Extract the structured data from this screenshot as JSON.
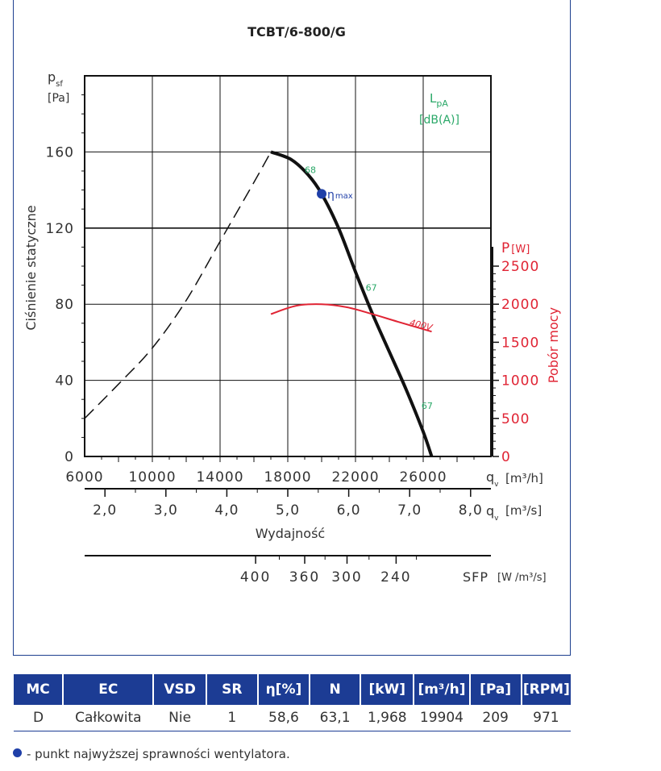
{
  "chart_data": {
    "type": "line",
    "title": "TCBT/6-800/G",
    "y_label": "Ciśnienie statyczne",
    "y_symbol": "p",
    "y_symbol_sub": "sf",
    "y_unit": "[Pa]",
    "y_ticks": [
      "160",
      "120",
      "80",
      "40",
      "0"
    ],
    "ylim": [
      0,
      200
    ],
    "x_label": "Wydajność",
    "x_ticks_m3h": [
      "6000",
      "10000",
      "14000",
      "18000",
      "22000",
      "26000"
    ],
    "x_unit_m3h": "[m³/h]",
    "x_symbol": "q",
    "x_symbol_sub": "v",
    "xlim_m3h": [
      6000,
      30000
    ],
    "x_ticks_m3s": [
      "2,0",
      "3,0",
      "4,0",
      "5,0",
      "6,0",
      "7,0",
      "8,0"
    ],
    "x_unit_m3s": "[m³/s]",
    "power_axis": {
      "label": "Pobór mocy",
      "symbol": "P",
      "unit": "[W]",
      "ticks": [
        "2500",
        "2000",
        "1500",
        "1000",
        "500",
        "0"
      ]
    },
    "lpa_label": "L",
    "lpa_sub": "pA",
    "lpa_unit": "[dB(A)]",
    "sfp_label": "SFP",
    "sfp_unit": "[W /m³/s]",
    "sfp_ticks": [
      "400",
      "360",
      "300",
      "240"
    ],
    "series": [
      {
        "name": "dashed",
        "style": "dashed",
        "x": [
          6000,
          8000,
          10000,
          12000,
          14000,
          16000,
          17000
        ],
        "y": [
          20,
          38,
          57,
          82,
          113,
          144,
          160
        ]
      },
      {
        "name": "",
        "style": "solid",
        "x": [
          17000,
          18200,
          19200,
          20000,
          21000,
          22000,
          23000,
          24000,
          25000,
          26000,
          26500
        ],
        "y": [
          160,
          156,
          148,
          138,
          120,
          97,
          75,
          55,
          35,
          13,
          0
        ]
      },
      {
        "name": "400V",
        "style": "power",
        "x": [
          17000,
          18500,
          20000,
          21500,
          23000,
          24500,
          26500
        ],
        "y_power": [
          1870,
          1980,
          2000,
          1960,
          1870,
          1770,
          1640
        ]
      }
    ],
    "noise_labels": [
      {
        "text": "68",
        "x": 19000,
        "y": 149
      },
      {
        "text": "67",
        "x": 22600,
        "y": 87
      },
      {
        "text": "67",
        "x": 25900,
        "y": 25
      }
    ],
    "eta_max": {
      "label": "η",
      "sub": "max",
      "x": 20000,
      "y": 138
    }
  },
  "table": {
    "headers": [
      "MC",
      "EC",
      "VSD",
      "SR",
      "η[%]",
      "N",
      "[kW]",
      "[m³/h]",
      "[Pa]",
      "[RPM]"
    ],
    "row": [
      "D",
      "Całkowita",
      "Nie",
      "1",
      "58,6",
      "63,1",
      "1,968",
      "19904",
      "209",
      "971"
    ]
  },
  "legend_note": "- punkt najwyższej sprawności wentylatora.",
  "colors": {
    "frame": "#1d3f8f",
    "table_header": "#1c3c94",
    "power_curve": "#e02434",
    "noise": "#2aa868",
    "eta_point": "#1f3fa8"
  }
}
